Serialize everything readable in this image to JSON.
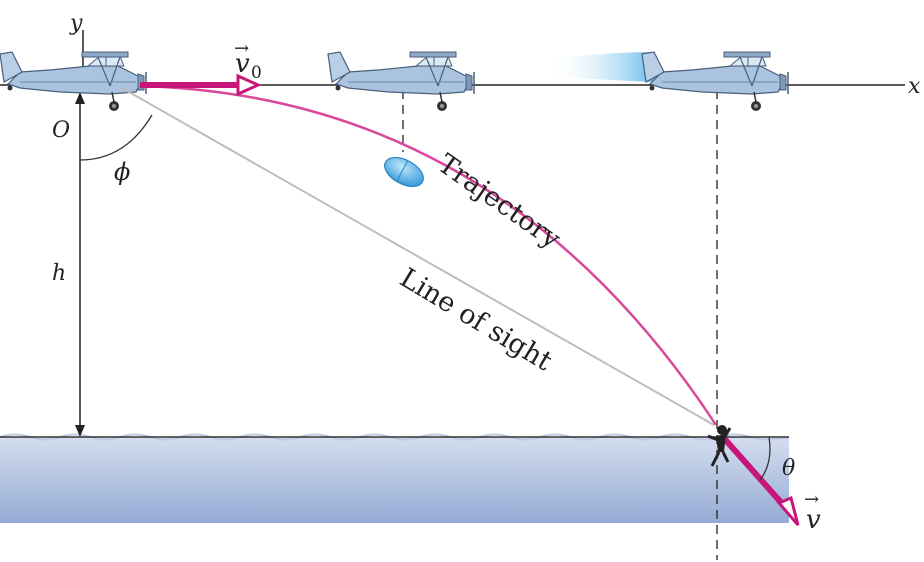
{
  "axes": {
    "x_label": "x",
    "y_label": "y",
    "origin_label": "O"
  },
  "quantities": {
    "height_label": "h",
    "angle_phi_label": "ϕ",
    "angle_theta_label": "θ",
    "v0_label": "v",
    "v0_subscript": "0",
    "v_label": "v",
    "vector_arrow_glyph": "→"
  },
  "curves": {
    "trajectory_label": "Trajectory",
    "line_of_sight_label": "Line of sight"
  },
  "colors": {
    "trajectory": "#d9489a",
    "vector": "#c8157a",
    "line_of_sight": "#bdbdbd",
    "water_top": "#cfd9ee",
    "water_bottom": "#93aad4",
    "plane_body": "#a9c2df",
    "capsule": "#48aee8"
  }
}
